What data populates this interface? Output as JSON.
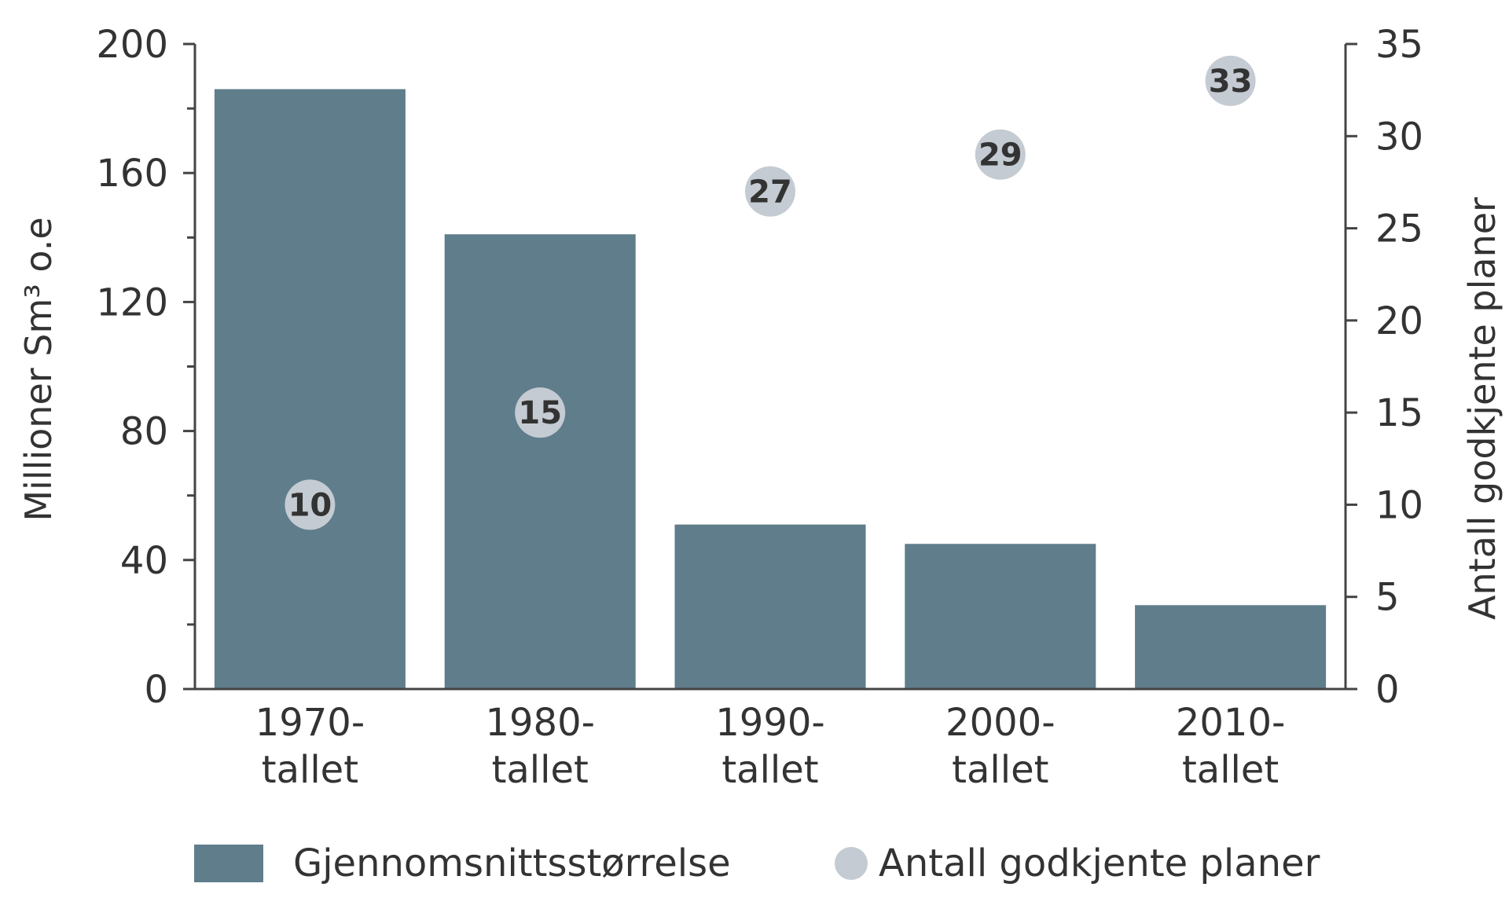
{
  "chart_data": {
    "type": "bar",
    "categories": [
      [
        "1970-",
        "tallet"
      ],
      [
        "1980-",
        "tallet"
      ],
      [
        "1990-",
        "tallet"
      ],
      [
        "2000-",
        "tallet"
      ],
      [
        "2010-",
        "tallet"
      ]
    ],
    "series": [
      {
        "name": "Gjennomsnittsstørrelse",
        "type": "bar",
        "axis": "left",
        "values": [
          186,
          141,
          51,
          45,
          26
        ]
      },
      {
        "name": "Antall godkjente planer",
        "type": "scatter",
        "axis": "right",
        "values": [
          10,
          15,
          27,
          29,
          33
        ]
      }
    ],
    "ylabel": "Millioner Sm³ o.e",
    "y2label": "Antall godkjente planer",
    "ylim": [
      0,
      200
    ],
    "y2lim": [
      0,
      35
    ],
    "yticks": [
      0,
      40,
      80,
      120,
      160,
      200
    ],
    "y2ticks": [
      0,
      5,
      10,
      15,
      20,
      25,
      30,
      35
    ],
    "legend_position": "bottom",
    "grid": false
  },
  "colors": {
    "bar": "#607d8b",
    "point": "#c4cbd2",
    "axis": "#444444",
    "text": "#333333"
  }
}
